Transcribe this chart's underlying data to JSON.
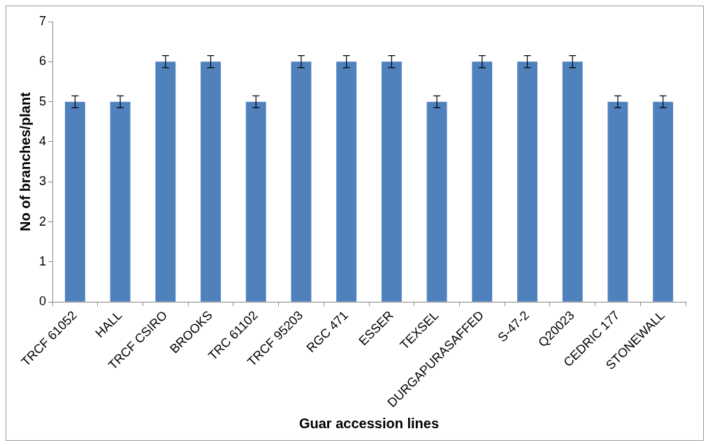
{
  "chart_data": {
    "type": "bar",
    "xlabel": "Guar accession lines",
    "ylabel": "No of branches/plant",
    "categories": [
      "TRCF 61052",
      "HALL",
      "TRCF CSIRO",
      "BROOKS",
      "TRC 61102",
      "TRCF 95203",
      "RGC 471",
      "ESSER",
      "TEXSEL",
      "DURGAPURASAFFED",
      "S-47-2",
      "Q20023",
      "CEDRIC 177",
      "STONEWALL"
    ],
    "values": [
      5,
      5,
      6,
      6,
      5,
      6,
      6,
      6,
      5,
      6,
      6,
      6,
      5,
      5
    ],
    "errors": [
      0.15,
      0.15,
      0.15,
      0.15,
      0.15,
      0.15,
      0.15,
      0.15,
      0.15,
      0.15,
      0.15,
      0.15,
      0.15,
      0.15
    ],
    "color": "#4f81bd",
    "ylim": [
      0,
      7
    ],
    "yticks": [
      0,
      1,
      2,
      3,
      4,
      5,
      6,
      7
    ],
    "grid": false,
    "legend": false
  }
}
